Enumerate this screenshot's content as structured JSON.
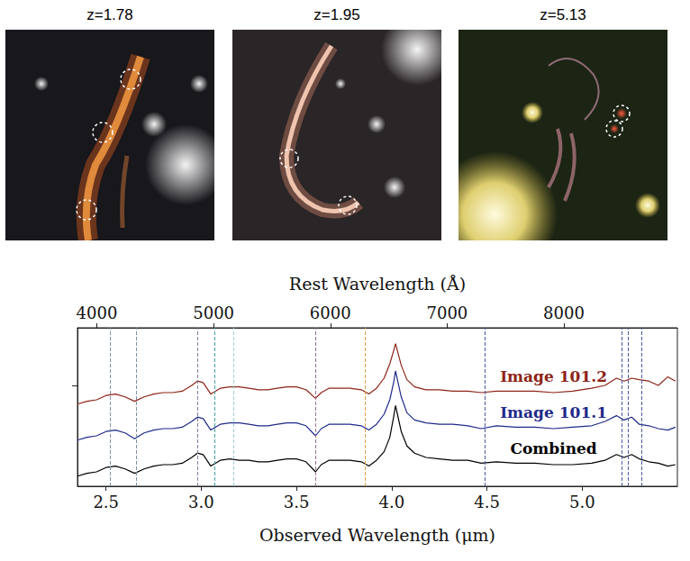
{
  "images": [
    {
      "title": "z=1.78"
    },
    {
      "title": "z=1.95"
    },
    {
      "title": "z=5.13"
    }
  ],
  "chart_data": {
    "type": "line",
    "xlabel": "Observed Wavelength (μm)",
    "x2label": "Rest Wavelength (Å)",
    "x": [
      2.35,
      2.4,
      2.45,
      2.5,
      2.55,
      2.6,
      2.65,
      2.7,
      2.75,
      2.8,
      2.85,
      2.9,
      2.95,
      2.98,
      3.01,
      3.05,
      3.1,
      3.15,
      3.2,
      3.25,
      3.3,
      3.35,
      3.4,
      3.45,
      3.5,
      3.55,
      3.6,
      3.63,
      3.67,
      3.72,
      3.78,
      3.84,
      3.88,
      3.92,
      3.96,
      3.99,
      4.01,
      4.02,
      4.03,
      4.05,
      4.08,
      4.12,
      4.18,
      4.25,
      4.32,
      4.4,
      4.47,
      4.55,
      4.65,
      4.75,
      4.85,
      4.95,
      5.05,
      5.12,
      5.18,
      5.22,
      5.26,
      5.3,
      5.35,
      5.4,
      5.45,
      5.49
    ],
    "xlim": [
      2.35,
      5.5
    ],
    "xticks": [
      2.5,
      {
        "value": 3,
        "label": "3.0"
      },
      3.5,
      {
        "value": 4,
        "label": "4.0"
      },
      4.5,
      {
        "value": 5,
        "label": "5.0"
      }
    ],
    "x2lim": [
      3834,
      8972
    ],
    "x2ticks": [
      4000,
      5000,
      6000,
      7000,
      8000
    ],
    "ylim": [
      0,
      11
    ],
    "yticks": [
      7
    ],
    "tick_labels": "x",
    "grid": false,
    "series": [
      {
        "name": "Combined",
        "color": "#000000",
        "values": [
          0.7,
          0.9,
          1.0,
          1.3,
          1.4,
          1.2,
          0.9,
          1.2,
          1.4,
          1.5,
          1.5,
          1.6,
          2.0,
          2.3,
          2.2,
          1.4,
          1.8,
          1.9,
          1.8,
          1.8,
          1.7,
          1.7,
          1.8,
          1.9,
          1.9,
          1.7,
          1.0,
          1.5,
          1.8,
          1.8,
          1.8,
          1.7,
          1.4,
          1.8,
          2.4,
          3.4,
          4.8,
          5.6,
          5.0,
          3.8,
          2.8,
          2.3,
          2.0,
          1.9,
          1.8,
          1.8,
          1.6,
          1.7,
          1.6,
          1.6,
          1.5,
          1.5,
          1.6,
          1.8,
          2.2,
          2.0,
          2.2,
          1.9,
          1.7,
          1.6,
          1.4,
          1.5
        ]
      },
      {
        "name": "Image 101.1",
        "color": "#1f2a8a",
        "values": [
          3.2,
          3.4,
          3.5,
          3.8,
          3.9,
          3.7,
          3.3,
          3.7,
          3.9,
          4.0,
          4.0,
          4.1,
          4.5,
          4.8,
          4.7,
          3.9,
          4.3,
          4.4,
          4.4,
          4.3,
          4.2,
          4.2,
          4.3,
          4.4,
          4.4,
          4.2,
          3.5,
          4.0,
          4.3,
          4.3,
          4.3,
          4.2,
          3.9,
          4.3,
          5.0,
          6.0,
          7.2,
          8.0,
          7.4,
          6.2,
          5.1,
          4.6,
          4.4,
          4.3,
          4.3,
          4.2,
          4.0,
          4.2,
          4.1,
          4.1,
          4.0,
          4.1,
          4.2,
          4.5,
          4.9,
          4.6,
          4.8,
          4.3,
          4.2,
          4.0,
          3.9,
          4.1
        ]
      },
      {
        "name": "Image 101.2",
        "color": "#8e2418",
        "values": [
          5.7,
          5.9,
          6.0,
          6.3,
          6.4,
          6.2,
          5.9,
          6.2,
          6.4,
          6.5,
          6.5,
          6.6,
          7.0,
          7.3,
          7.2,
          6.4,
          6.8,
          6.9,
          6.9,
          6.8,
          6.7,
          6.7,
          6.8,
          6.9,
          6.9,
          6.7,
          6.1,
          6.5,
          6.8,
          6.8,
          6.8,
          6.7,
          6.4,
          6.8,
          7.5,
          8.5,
          9.4,
          9.9,
          9.4,
          8.4,
          7.4,
          6.9,
          6.7,
          6.7,
          6.6,
          6.6,
          6.5,
          6.6,
          6.6,
          6.6,
          6.5,
          6.6,
          6.8,
          7.0,
          7.5,
          7.3,
          7.5,
          7.4,
          7.3,
          7.0,
          7.6,
          7.3
        ]
      }
    ],
    "reference_lines": [
      {
        "x": 2.515,
        "color": "#7f8fa6"
      },
      {
        "x": 2.661,
        "color": "#7f8fa6"
      },
      {
        "x": 2.98,
        "color": "#7f7f9f"
      },
      {
        "x": 3.069,
        "color": "#4aa3a3"
      },
      {
        "x": 3.165,
        "color": "#9ccfe0"
      },
      {
        "x": 3.602,
        "color": "#9a6f8f"
      },
      {
        "x": 3.862,
        "color": "#e0a040"
      },
      {
        "x": 4.487,
        "color": "#4a5aa0"
      },
      {
        "x": 5.209,
        "color": "#4a5aa0"
      },
      {
        "x": 5.236,
        "color": "#4a5aa0"
      },
      {
        "x": 5.31,
        "color": "#4a5aa0"
      }
    ]
  }
}
